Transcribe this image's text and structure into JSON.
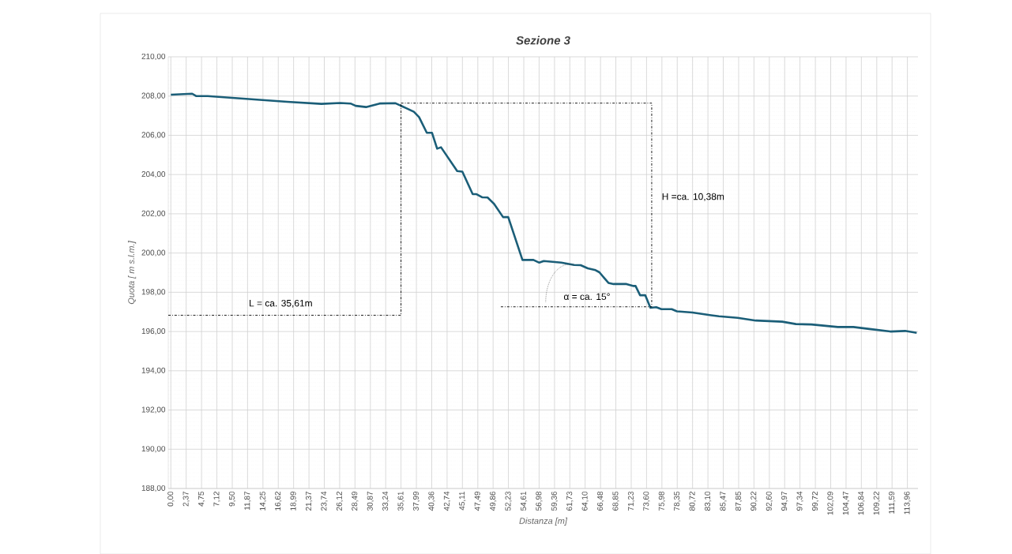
{
  "chart_data": {
    "type": "line",
    "title": "Sezione 3",
    "xlabel": "Distanza [m]",
    "ylabel": "Quota [ m s.l.m.]",
    "annotations": [
      "L = ca. 35,61m",
      "H =ca. 10,38m",
      {
        "text": "α = ca. 15°",
        "x": 62.3,
        "y": 199.39
      }
    ],
    "series": [
      {
        "color": "#1b5e78",
        "x": [
          0,
          3.3,
          3.9,
          5.7,
          18.0,
          23.3,
          26.2,
          27.8,
          28.6,
          30.2,
          32.3,
          34.7,
          36.3,
          37.6,
          38.4,
          39.6,
          40.4,
          41.2,
          41.8,
          44.3,
          45.1,
          46.7,
          47.3,
          48.2,
          49.0,
          50.0,
          51.4,
          52.2,
          54.4,
          56.1,
          57.0,
          57.7,
          60.4,
          62.4,
          63.4,
          64.5,
          65.7,
          66.3,
          67.7,
          68.5,
          70.5,
          71.6,
          71.9,
          72.6,
          73.4,
          74.2,
          75.1,
          75.9,
          77.5,
          78.3,
          80.7,
          83.6,
          84.8,
          87.7,
          90.5,
          94.6,
          96.7,
          99.1,
          103.2,
          105.6,
          108.1,
          111.3,
          113.6,
          115.4
        ],
        "values": [
          208.07,
          208.12,
          208.0,
          208.0,
          207.71,
          207.6,
          207.65,
          207.62,
          207.5,
          207.44,
          207.62,
          207.64,
          207.4,
          207.2,
          206.93,
          206.13,
          206.13,
          205.32,
          205.39,
          204.18,
          204.15,
          203.0,
          203.0,
          202.84,
          202.83,
          202.51,
          201.83,
          201.83,
          199.65,
          199.65,
          199.51,
          199.59,
          199.51,
          199.39,
          199.38,
          199.22,
          199.13,
          199.02,
          198.48,
          198.42,
          198.42,
          198.32,
          198.32,
          197.85,
          197.85,
          197.21,
          197.24,
          197.14,
          197.14,
          197.03,
          196.97,
          196.83,
          196.78,
          196.7,
          196.56,
          196.5,
          196.38,
          196.36,
          196.23,
          196.23,
          196.13,
          196.0,
          196.03,
          195.93
        ]
      },
      {
        "color": "#000000",
        "line_style": "dashed",
        "x": [
          -0.4,
          35.61,
          35.61
        ],
        "values": [
          196.83,
          196.83,
          207.64
        ]
      },
      {
        "color": "#000000",
        "line_style": "dashed",
        "x": [
          35.61,
          74.4,
          74.4,
          51.0
        ],
        "values": [
          207.64,
          207.64,
          197.26,
          197.26
        ]
      }
    ],
    "xlim": [
      -0.4,
      115.6
    ],
    "ylim": [
      188,
      210
    ],
    "grid": true,
    "xticks": [
      {
        "value": 0,
        "label": "0,00"
      },
      {
        "value": 2.37,
        "label": "2,37"
      },
      {
        "value": 4.75,
        "label": "4,75"
      },
      {
        "value": 7.12,
        "label": "7,12"
      },
      {
        "value": 9.5,
        "label": "9,50"
      },
      {
        "value": 11.87,
        "label": "11,87"
      },
      {
        "value": 14.25,
        "label": "14,25"
      },
      {
        "value": 16.62,
        "label": "16,62"
      },
      {
        "value": 18.99,
        "label": "18,99"
      },
      {
        "value": 21.37,
        "label": "21,37"
      },
      {
        "value": 23.74,
        "label": "23,74"
      },
      {
        "value": 26.12,
        "label": "26,12"
      },
      {
        "value": 28.49,
        "label": "28,49"
      },
      {
        "value": 30.87,
        "label": "30,87"
      },
      {
        "value": 33.24,
        "label": "33,24"
      },
      {
        "value": 35.61,
        "label": "35,61"
      },
      {
        "value": 37.99,
        "label": "37,99"
      },
      {
        "value": 40.36,
        "label": "40,36"
      },
      {
        "value": 42.74,
        "label": "42,74"
      },
      {
        "value": 45.11,
        "label": "45,11"
      },
      {
        "value": 47.49,
        "label": "47,49"
      },
      {
        "value": 49.86,
        "label": "49,86"
      },
      {
        "value": 52.23,
        "label": "52,23"
      },
      {
        "value": 54.61,
        "label": "54,61"
      },
      {
        "value": 56.98,
        "label": "56,98"
      },
      {
        "value": 59.36,
        "label": "59,36"
      },
      {
        "value": 61.73,
        "label": "61,73"
      },
      {
        "value": 64.1,
        "label": "64,10"
      },
      {
        "value": 66.48,
        "label": "66,48"
      },
      {
        "value": 68.85,
        "label": "68,85"
      },
      {
        "value": 71.23,
        "label": "71,23"
      },
      {
        "value": 73.6,
        "label": "73,60"
      },
      {
        "value": 75.98,
        "label": "75,98"
      },
      {
        "value": 78.35,
        "label": "78,35"
      },
      {
        "value": 80.72,
        "label": "80,72"
      },
      {
        "value": 83.1,
        "label": "83,10"
      },
      {
        "value": 85.47,
        "label": "85,47"
      },
      {
        "value": 87.85,
        "label": "87,85"
      },
      {
        "value": 90.22,
        "label": "90,22"
      },
      {
        "value": 92.6,
        "label": "92,60"
      },
      {
        "value": 94.97,
        "label": "94,97"
      },
      {
        "value": 97.34,
        "label": "97,34"
      },
      {
        "value": 99.72,
        "label": "99,72"
      },
      {
        "value": 102.09,
        "label": "102,09"
      },
      {
        "value": 104.47,
        "label": "104,47"
      },
      {
        "value": 106.84,
        "label": "106,84"
      },
      {
        "value": 109.22,
        "label": "109,22"
      },
      {
        "value": 111.59,
        "label": "111,59"
      },
      {
        "value": 113.96,
        "label": "113,96"
      }
    ],
    "yticks": [
      {
        "value": 188,
        "label": "188,00"
      },
      {
        "value": 190,
        "label": "190,00"
      },
      {
        "value": 192,
        "label": "192,00"
      },
      {
        "value": 194,
        "label": "194,00"
      },
      {
        "value": 196,
        "label": "196,00"
      },
      {
        "value": 198,
        "label": "198,00"
      },
      {
        "value": 200,
        "label": "200,00"
      },
      {
        "value": 202,
        "label": "202,00"
      },
      {
        "value": 204,
        "label": "204,00"
      },
      {
        "value": 206,
        "label": "206,00"
      },
      {
        "value": 208,
        "label": "208,00"
      },
      {
        "value": 210,
        "label": "210,00"
      }
    ]
  }
}
